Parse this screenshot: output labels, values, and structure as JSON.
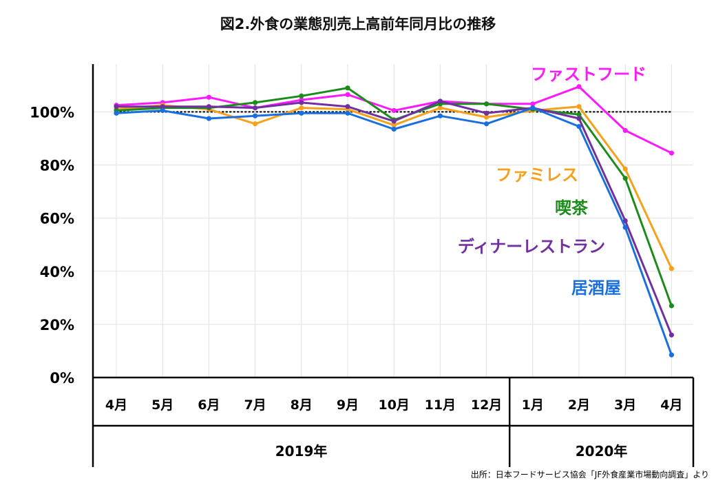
{
  "chart_data": {
    "type": "line",
    "title": "図2.外食の業態別売上高前年同月比の推移",
    "categories": [
      "4月",
      "5月",
      "6月",
      "7月",
      "8月",
      "9月",
      "10月",
      "11月",
      "12月",
      "1月",
      "2月",
      "3月",
      "4月"
    ],
    "year_groups": [
      {
        "label": "2019年",
        "from": 0,
        "to": 8
      },
      {
        "label": "2020年",
        "from": 9,
        "to": 12
      }
    ],
    "y_ticks": [
      "0%",
      "20%",
      "40%",
      "60%",
      "80%",
      "100%"
    ],
    "y_tick_values": [
      0,
      20,
      40,
      60,
      80,
      100
    ],
    "ylim": [
      0,
      118
    ],
    "reference_line": 100,
    "series": [
      {
        "name": "ファストフード",
        "color": "#ff19ff",
        "values": [
          102.5,
          103.5,
          105.5,
          101.5,
          104.5,
          106.5,
          100.5,
          104.0,
          103.0,
          103.0,
          109.5,
          93.0,
          84.5
        ]
      },
      {
        "name": "ファミレス",
        "color": "#f7a01c",
        "values": [
          101.0,
          102.5,
          101.0,
          95.5,
          101.5,
          101.0,
          95.0,
          101.5,
          98.0,
          100.5,
          102.0,
          78.5,
          41.0
        ]
      },
      {
        "name": "喫茶",
        "color": "#1a8c1a",
        "values": [
          100.5,
          101.5,
          101.5,
          103.5,
          106.0,
          109.0,
          97.0,
          103.0,
          103.0,
          101.0,
          99.0,
          75.0,
          27.0
        ]
      },
      {
        "name": "ディナーレストラン",
        "color": "#7030a0",
        "values": [
          102.0,
          102.0,
          102.0,
          101.5,
          103.5,
          102.0,
          96.5,
          104.0,
          99.5,
          101.5,
          97.5,
          59.0,
          16.0
        ]
      },
      {
        "name": "居酒屋",
        "color": "#1a6fdf",
        "values": [
          99.5,
          100.5,
          97.5,
          98.5,
          99.5,
          99.5,
          93.5,
          98.5,
          95.5,
          101.5,
          94.5,
          56.5,
          8.5
        ]
      }
    ],
    "source": "出所：日本フードサービス協会「JF外食産業市場動向調査」より"
  }
}
